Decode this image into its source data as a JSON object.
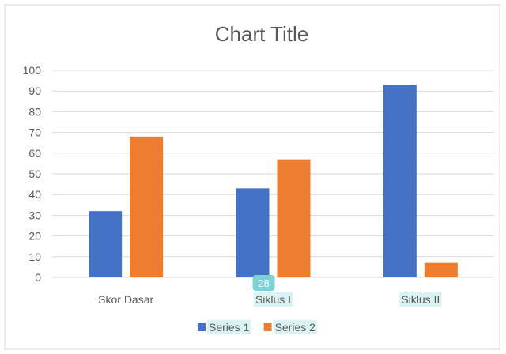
{
  "chart_data": {
    "type": "bar",
    "title": "Chart Title",
    "categories": [
      "Skor Dasar",
      "Siklus I",
      "Siklus II"
    ],
    "series": [
      {
        "name": "Series 1",
        "values": [
          32,
          43,
          93
        ],
        "color": "#4472C4"
      },
      {
        "name": "Series 2",
        "values": [
          68,
          57,
          7
        ],
        "color": "#ED7D31"
      }
    ],
    "ylim": [
      0,
      100
    ],
    "yticks": [
      0,
      10,
      20,
      30,
      40,
      50,
      60,
      70,
      80,
      90,
      100
    ],
    "grid": true,
    "legend": "bottom"
  },
  "overlay_badge": {
    "text": "28",
    "color": "#7FD1D8"
  },
  "label_highlight_color": "#D9F2F3"
}
